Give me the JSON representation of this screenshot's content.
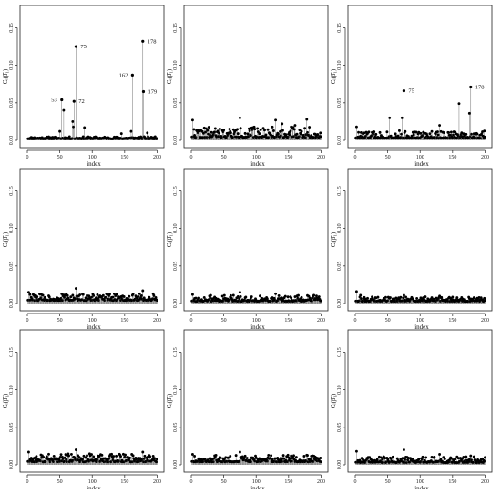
{
  "chart_data": [
    {
      "type": "scatter",
      "xlabel": "index",
      "ylabel": "Cᵢ(β̂₁)",
      "xlim": [
        0,
        205
      ],
      "ylim": [
        0,
        0.17
      ],
      "xticks": [
        "0",
        "50",
        "100",
        "150",
        "200"
      ],
      "yticks": [
        "0.00",
        "0.05",
        "0.10",
        "0.15"
      ],
      "base_level": 0.002,
      "noise": 0.003,
      "seed": 11,
      "highlights": [
        {
          "x": 53,
          "y": 0.054,
          "label": "53"
        },
        {
          "x": 75,
          "y": 0.125,
          "label": "75"
        },
        {
          "x": 72,
          "y": 0.052,
          "label": "72"
        },
        {
          "x": 162,
          "y": 0.087,
          "label": "162"
        },
        {
          "x": 178,
          "y": 0.132,
          "label": "178"
        },
        {
          "x": 179,
          "y": 0.065,
          "label": "179"
        }
      ],
      "extra_points": [
        {
          "x": 56,
          "y": 0.04
        },
        {
          "x": 70,
          "y": 0.025
        },
        {
          "x": 71,
          "y": 0.018
        },
        {
          "x": 50,
          "y": 0.012
        },
        {
          "x": 88,
          "y": 0.017
        },
        {
          "x": 145,
          "y": 0.009
        },
        {
          "x": 160,
          "y": 0.012
        },
        {
          "x": 185,
          "y": 0.01
        }
      ]
    },
    {
      "type": "scatter",
      "xlabel": "index",
      "ylabel": "Cᵢ(β̂₁)",
      "xlim": [
        0,
        205
      ],
      "ylim": [
        0,
        0.17
      ],
      "xticks": [
        "0",
        "50",
        "100",
        "150",
        "200"
      ],
      "yticks": [
        "0.00",
        "0.05",
        "0.10",
        "0.15"
      ],
      "base_level": 0.004,
      "noise": 0.014,
      "seed": 22,
      "highlights": [],
      "extra_points": [
        {
          "x": 2,
          "y": 0.027
        },
        {
          "x": 75,
          "y": 0.03
        },
        {
          "x": 130,
          "y": 0.027
        },
        {
          "x": 178,
          "y": 0.028
        },
        {
          "x": 140,
          "y": 0.022
        },
        {
          "x": 160,
          "y": 0.02
        }
      ]
    },
    {
      "type": "scatter",
      "xlabel": "index",
      "ylabel": "Cᵢ(β̂₁)",
      "xlim": [
        0,
        205
      ],
      "ylim": [
        0,
        0.17
      ],
      "xticks": [
        "0",
        "50",
        "100",
        "150",
        "200"
      ],
      "yticks": [
        "0.00",
        "0.05",
        "0.10",
        "0.15"
      ],
      "base_level": 0.003,
      "noise": 0.01,
      "seed": 33,
      "highlights": [
        {
          "x": 75,
          "y": 0.066,
          "label": "75"
        },
        {
          "x": 178,
          "y": 0.071,
          "label": "178"
        }
      ],
      "extra_points": [
        {
          "x": 2,
          "y": 0.018
        },
        {
          "x": 53,
          "y": 0.03
        },
        {
          "x": 72,
          "y": 0.03
        },
        {
          "x": 160,
          "y": 0.049
        },
        {
          "x": 176,
          "y": 0.036
        },
        {
          "x": 130,
          "y": 0.02
        }
      ]
    },
    {
      "type": "scatter",
      "xlabel": "index",
      "ylabel": "Cᵢ(β̂₁)",
      "xlim": [
        0,
        205
      ],
      "ylim": [
        0,
        0.17
      ],
      "xticks": [
        "0",
        "50",
        "100",
        "150",
        "200"
      ],
      "yticks": [
        "0.00",
        "0.05",
        "0.10",
        "0.15"
      ],
      "base_level": 0.004,
      "noise": 0.009,
      "seed": 44,
      "highlights": [],
      "extra_points": [
        {
          "x": 2,
          "y": 0.015
        },
        {
          "x": 75,
          "y": 0.02
        },
        {
          "x": 178,
          "y": 0.017
        },
        {
          "x": 60,
          "y": 0.013
        }
      ]
    },
    {
      "type": "scatter",
      "xlabel": "index",
      "ylabel": "Cᵢ(β̂₁)",
      "xlim": [
        0,
        205
      ],
      "ylim": [
        0,
        0.17
      ],
      "xticks": [
        "0",
        "50",
        "100",
        "150",
        "200"
      ],
      "yticks": [
        "0.00",
        "0.05",
        "0.10",
        "0.15"
      ],
      "base_level": 0.003,
      "noise": 0.008,
      "seed": 55,
      "highlights": [],
      "extra_points": [
        {
          "x": 2,
          "y": 0.012
        },
        {
          "x": 75,
          "y": 0.015
        },
        {
          "x": 130,
          "y": 0.013
        }
      ]
    },
    {
      "type": "scatter",
      "xlabel": "index",
      "ylabel": "Cᵢ(β̂₁)",
      "xlim": [
        0,
        205
      ],
      "ylim": [
        0,
        0.17
      ],
      "xticks": [
        "0",
        "50",
        "100",
        "150",
        "200"
      ],
      "yticks": [
        "0.00",
        "0.05",
        "0.10",
        "0.15"
      ],
      "base_level": 0.003,
      "noise": 0.006,
      "seed": 66,
      "highlights": [],
      "extra_points": [
        {
          "x": 2,
          "y": 0.016
        },
        {
          "x": 8,
          "y": 0.011
        },
        {
          "x": 75,
          "y": 0.011
        },
        {
          "x": 130,
          "y": 0.01
        }
      ]
    },
    {
      "type": "scatter",
      "xlabel": "index",
      "ylabel": "Cᵢ(β̂₁)",
      "xlim": [
        0,
        205
      ],
      "ylim": [
        0,
        0.17
      ],
      "xticks": [
        "0",
        "50",
        "100",
        "150",
        "200"
      ],
      "yticks": [
        "0.00",
        "0.05",
        "0.10",
        "0.15"
      ],
      "base_level": 0.004,
      "noise": 0.011,
      "seed": 77,
      "highlights": [],
      "extra_points": [
        {
          "x": 2,
          "y": 0.017
        },
        {
          "x": 75,
          "y": 0.02
        },
        {
          "x": 178,
          "y": 0.017
        },
        {
          "x": 62,
          "y": 0.013
        }
      ]
    },
    {
      "type": "scatter",
      "xlabel": "index",
      "ylabel": "Cᵢ(β̂₁)",
      "xlim": [
        0,
        205
      ],
      "ylim": [
        0,
        0.17
      ],
      "xticks": [
        "0",
        "50",
        "100",
        "150",
        "200"
      ],
      "yticks": [
        "0.00",
        "0.05",
        "0.10",
        "0.15"
      ],
      "base_level": 0.004,
      "noise": 0.009,
      "seed": 88,
      "highlights": [],
      "extra_points": [
        {
          "x": 2,
          "y": 0.014
        },
        {
          "x": 75,
          "y": 0.017
        },
        {
          "x": 178,
          "y": 0.013
        }
      ]
    },
    {
      "type": "scatter",
      "xlabel": "index",
      "ylabel": "Cᵢ(β̂₁)",
      "xlim": [
        0,
        205
      ],
      "ylim": [
        0,
        0.17
      ],
      "xticks": [
        "0",
        "50",
        "100",
        "150",
        "200"
      ],
      "yticks": [
        "0.00",
        "0.05",
        "0.10",
        "0.15"
      ],
      "base_level": 0.003,
      "noise": 0.008,
      "seed": 99,
      "highlights": [],
      "extra_points": [
        {
          "x": 2,
          "y": 0.018
        },
        {
          "x": 75,
          "y": 0.02
        },
        {
          "x": 130,
          "y": 0.014
        },
        {
          "x": 178,
          "y": 0.012
        }
      ]
    }
  ]
}
